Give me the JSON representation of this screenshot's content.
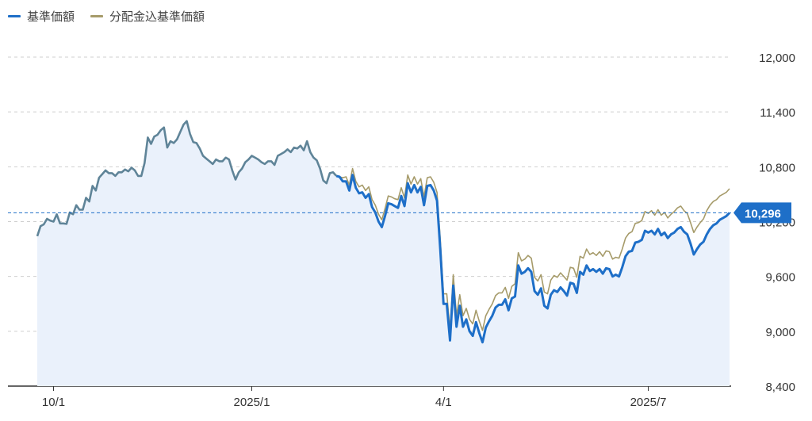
{
  "legend": {
    "items": [
      {
        "label": "基準価額",
        "color": "#1e6fc8"
      },
      {
        "label": "分配金込基準価額",
        "color": "#a69b6a"
      }
    ]
  },
  "current_value_label": "10,296",
  "chart_data": {
    "type": "line",
    "y_ticks": [
      "12,000",
      "11,400",
      "10,800",
      "10,200",
      "9,600",
      "9,000",
      "8,400"
    ],
    "ylim": [
      8400,
      12000
    ],
    "x_ticks": [
      {
        "label": "10/1",
        "index": 5
      },
      {
        "label": "2025/1",
        "index": 66
      },
      {
        "label": "4/1",
        "index": 125
      },
      {
        "label": "2025/7",
        "index": 188
      }
    ],
    "reference_line": 10296,
    "colors": {
      "nav": "#1e6fc8",
      "nav_with_dividends": "#a69b6a",
      "shared": "#5f8498",
      "area": "#eaf1fb",
      "label_bg": "#1e6fc8"
    },
    "divergence_index": 92,
    "series": [
      {
        "name": "基準価額",
        "values": [
          10040,
          10150,
          10170,
          10230,
          10210,
          10200,
          10280,
          10180,
          10180,
          10175,
          10300,
          10280,
          10380,
          10330,
          10330,
          10460,
          10420,
          10590,
          10540,
          10680,
          10720,
          10760,
          10730,
          10730,
          10700,
          10740,
          10740,
          10770,
          10750,
          10790,
          10760,
          10700,
          10700,
          10840,
          11120,
          11050,
          11130,
          11150,
          11200,
          11230,
          11010,
          11080,
          11060,
          11100,
          11180,
          11260,
          11300,
          11160,
          11070,
          11060,
          11000,
          10920,
          10890,
          10860,
          10830,
          10880,
          10860,
          10860,
          10900,
          10880,
          10760,
          10660,
          10740,
          10780,
          10850,
          10880,
          10920,
          10900,
          10880,
          10850,
          10830,
          10860,
          10860,
          10820,
          10920,
          10940,
          10960,
          10990,
          10960,
          11010,
          11000,
          11030,
          10980,
          11080,
          10960,
          10900,
          10870,
          10780,
          10650,
          10620,
          10730,
          10740,
          10700,
          10690,
          10640,
          10640,
          10540,
          10710,
          10570,
          10510,
          10520,
          10460,
          10500,
          10360,
          10300,
          10200,
          10140,
          10260,
          10400,
          10390,
          10370,
          10350,
          10480,
          10370,
          10620,
          10520,
          10600,
          10520,
          10580,
          10380,
          10590,
          10600,
          10540,
          10430,
          9900,
          9300,
          9300,
          8900,
          9500,
          9050,
          9280,
          9050,
          9130,
          9000,
          8950,
          9100,
          8980,
          8880,
          9040,
          9110,
          9170,
          9260,
          9290,
          9290,
          9350,
          9230,
          9360,
          9380,
          9720,
          9630,
          9650,
          9690,
          9650,
          9440,
          9400,
          9470,
          9280,
          9250,
          9400,
          9450,
          9430,
          9480,
          9440,
          9390,
          9530,
          9520,
          9420,
          9650,
          9620,
          9720,
          9660,
          9680,
          9650,
          9680,
          9630,
          9690,
          9680,
          9600,
          9620,
          9600,
          9700,
          9820,
          9870,
          9880,
          9970,
          9980,
          10000,
          10100,
          10080,
          10100,
          10060,
          10120,
          10050,
          10080,
          10020,
          10060,
          10080,
          10120,
          10140,
          10090,
          10060,
          9960,
          9840,
          9900,
          9950,
          9980,
          10060,
          10120,
          10160,
          10180,
          10220,
          10240,
          10260,
          10296
        ]
      },
      {
        "name": "分配金込基準価額",
        "values": [
          10040,
          10150,
          10170,
          10230,
          10210,
          10200,
          10280,
          10180,
          10180,
          10175,
          10300,
          10280,
          10380,
          10330,
          10330,
          10460,
          10420,
          10590,
          10540,
          10680,
          10720,
          10760,
          10730,
          10730,
          10700,
          10740,
          10740,
          10770,
          10750,
          10790,
          10760,
          10700,
          10700,
          10840,
          11120,
          11050,
          11130,
          11150,
          11200,
          11230,
          11010,
          11080,
          11060,
          11100,
          11180,
          11260,
          11300,
          11160,
          11070,
          11060,
          11000,
          10920,
          10890,
          10860,
          10830,
          10880,
          10860,
          10860,
          10900,
          10880,
          10760,
          10660,
          10740,
          10780,
          10850,
          10880,
          10920,
          10900,
          10880,
          10850,
          10830,
          10860,
          10860,
          10820,
          10920,
          10940,
          10960,
          10990,
          10960,
          11010,
          11000,
          11030,
          10980,
          11080,
          10960,
          10900,
          10870,
          10780,
          10650,
          10620,
          10730,
          10740,
          10700,
          10690,
          10680,
          10690,
          10600,
          10780,
          10640,
          10580,
          10600,
          10540,
          10580,
          10440,
          10380,
          10280,
          10220,
          10340,
          10480,
          10470,
          10450,
          10440,
          10570,
          10460,
          10710,
          10610,
          10690,
          10610,
          10670,
          10470,
          10680,
          10690,
          10630,
          10520,
          10010,
          9410,
          9410,
          9020,
          9620,
          9170,
          9400,
          9170,
          9250,
          9130,
          9080,
          9230,
          9110,
          9010,
          9170,
          9240,
          9300,
          9390,
          9420,
          9420,
          9480,
          9360,
          9490,
          9520,
          9860,
          9770,
          9790,
          9830,
          9800,
          9590,
          9550,
          9620,
          9430,
          9410,
          9560,
          9610,
          9590,
          9640,
          9600,
          9560,
          9700,
          9690,
          9590,
          9820,
          9800,
          9900,
          9840,
          9860,
          9830,
          9870,
          9820,
          9880,
          9870,
          9790,
          9810,
          9800,
          9900,
          10020,
          10070,
          10090,
          10180,
          10190,
          10210,
          10310,
          10290,
          10320,
          10270,
          10330,
          10270,
          10300,
          10240,
          10280,
          10310,
          10350,
          10370,
          10320,
          10290,
          10190,
          10080,
          10140,
          10190,
          10230,
          10320,
          10380,
          10420,
          10440,
          10480,
          10500,
          10520,
          10560
        ]
      }
    ]
  }
}
